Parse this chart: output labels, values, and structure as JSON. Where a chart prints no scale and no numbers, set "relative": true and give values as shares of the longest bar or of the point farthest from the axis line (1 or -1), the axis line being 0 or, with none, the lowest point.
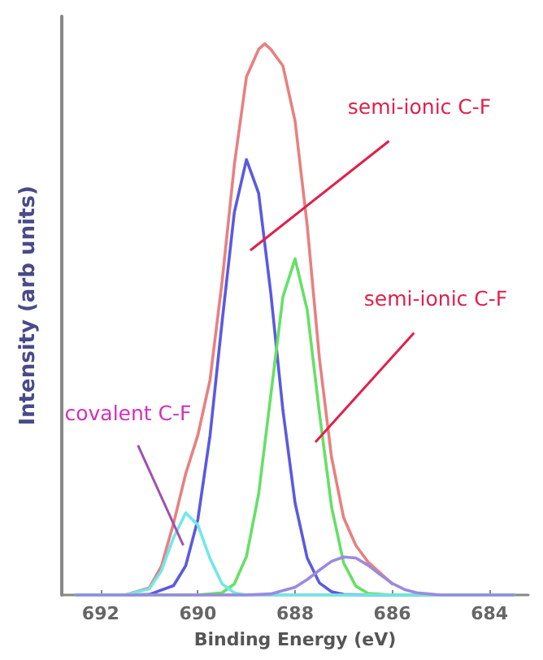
{
  "chart_data": {
    "type": "line",
    "relative": true,
    "xlabel": "Binding Energy (eV)",
    "ylabel": "Intensity (arb units)",
    "xlim": [
      692.8,
      683.2
    ],
    "xticks": [
      692,
      690,
      688,
      686,
      684
    ],
    "grid": false,
    "marker": "none",
    "line_style": "solid",
    "series": [
      {
        "color": "#e88080",
        "x": [
          692.5,
          691.5,
          691.0,
          690.75,
          690.5,
          690.25,
          690.0,
          689.75,
          689.5,
          689.25,
          689.0,
          688.75,
          688.625,
          688.5,
          688.25,
          688.0,
          687.75,
          687.5,
          687.25,
          687.0,
          686.75,
          686.5,
          686.25,
          686.0
        ],
        "values": [
          0,
          0,
          0.013,
          0.052,
          0.13,
          0.22,
          0.29,
          0.39,
          0.57,
          0.78,
          0.94,
          0.99,
          1.0,
          0.99,
          0.96,
          0.86,
          0.67,
          0.43,
          0.25,
          0.14,
          0.09,
          0.06,
          0.04,
          0.02
        ]
      },
      {
        "color": "#5a5ae0",
        "x": [
          692.5,
          691.5,
          691.0,
          690.5,
          690.25,
          690.0,
          689.75,
          689.5,
          689.25,
          689.0,
          688.75,
          688.5,
          688.25,
          688.0,
          687.75,
          687.5,
          687.25,
          687.0,
          686.5,
          683.5
        ],
        "values": [
          0,
          0,
          0.001,
          0.017,
          0.053,
          0.137,
          0.289,
          0.497,
          0.694,
          0.79,
          0.729,
          0.548,
          0.335,
          0.167,
          0.067,
          0.022,
          0.006,
          0.001,
          0,
          0
        ]
      },
      {
        "color": "#66e066",
        "x": [
          692.5,
          690.0,
          689.5,
          689.25,
          689.0,
          688.75,
          688.5,
          688.25,
          688.0,
          687.75,
          687.5,
          687.25,
          687.0,
          686.75,
          686.5,
          686.0,
          683.5
        ],
        "values": [
          0,
          0,
          0.004,
          0.02,
          0.07,
          0.183,
          0.362,
          0.541,
          0.61,
          0.517,
          0.331,
          0.16,
          0.058,
          0.016,
          0.003,
          0,
          0
        ]
      },
      {
        "color": "#70e8e8",
        "x": [
          692.5,
          691.5,
          691.0,
          690.75,
          690.5,
          690.25,
          690.0,
          689.75,
          689.5,
          689.25,
          689.0,
          683.5
        ],
        "values": [
          0,
          0,
          0.011,
          0.044,
          0.104,
          0.149,
          0.127,
          0.066,
          0.02,
          0.004,
          0,
          0
        ]
      },
      {
        "color": "#9a8ae0",
        "x": [
          692.5,
          689.0,
          688.5,
          688.0,
          687.75,
          687.5,
          687.25,
          687.0,
          686.75,
          686.5,
          686.25,
          686.0,
          685.75,
          685.5,
          685.0,
          683.5
        ],
        "values": [
          0,
          0,
          0.002,
          0.014,
          0.028,
          0.045,
          0.061,
          0.069,
          0.067,
          0.054,
          0.037,
          0.021,
          0.01,
          0.004,
          0,
          0
        ]
      }
    ],
    "annotations": [
      "semi-ionic C-F",
      "semi-ionic C-F",
      {
        "text": "covalent C-F",
        "x": 690.3,
        "y": 0.09
      }
    ]
  }
}
